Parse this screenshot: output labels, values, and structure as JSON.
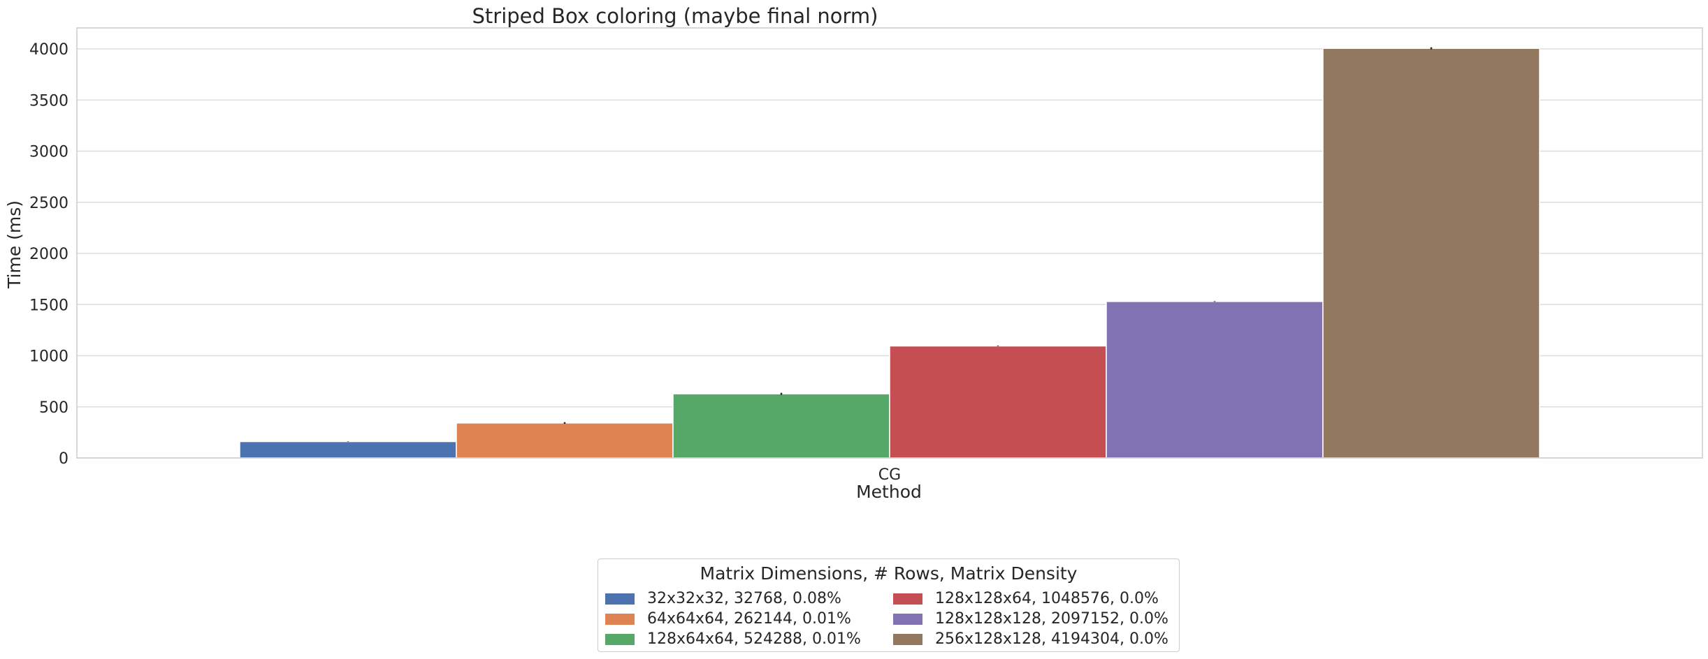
{
  "chart_data": {
    "type": "bar",
    "title": "Striped Box coloring (maybe final norm)",
    "xlabel": "Method",
    "ylabel": "Time (ms)",
    "categories": [
      "CG"
    ],
    "ylim": [
      0,
      4200
    ],
    "yticks": [
      0,
      500,
      1000,
      1500,
      2000,
      2500,
      3000,
      3500,
      4000
    ],
    "grid": true,
    "legend": {
      "title": "Matrix Dimensions, # Rows, Matrix Density",
      "placement": "bottom-center",
      "columns": 2
    },
    "series": [
      {
        "name": "32x32x32, 32768, 0.08%",
        "values": [
          160
        ],
        "err": [
          2
        ],
        "color": "#4c72b0"
      },
      {
        "name": "64x64x64, 262144, 0.01%",
        "values": [
          342
        ],
        "err": [
          8
        ],
        "color": "#dd8452"
      },
      {
        "name": "128x64x64, 524288, 0.01%",
        "values": [
          627
        ],
        "err": [
          10
        ],
        "color": "#55a868"
      },
      {
        "name": "128x128x64, 1048576, 0.0%",
        "values": [
          1095
        ],
        "err": [
          3
        ],
        "color": "#c44e52"
      },
      {
        "name": "128x128x128, 2097152, 0.0%",
        "values": [
          1530
        ],
        "err": [
          3
        ],
        "color": "#8172b3"
      },
      {
        "name": "256x128x128, 4194304, 0.0%",
        "values": [
          4005
        ],
        "err": [
          10
        ],
        "color": "#937860"
      }
    ]
  }
}
